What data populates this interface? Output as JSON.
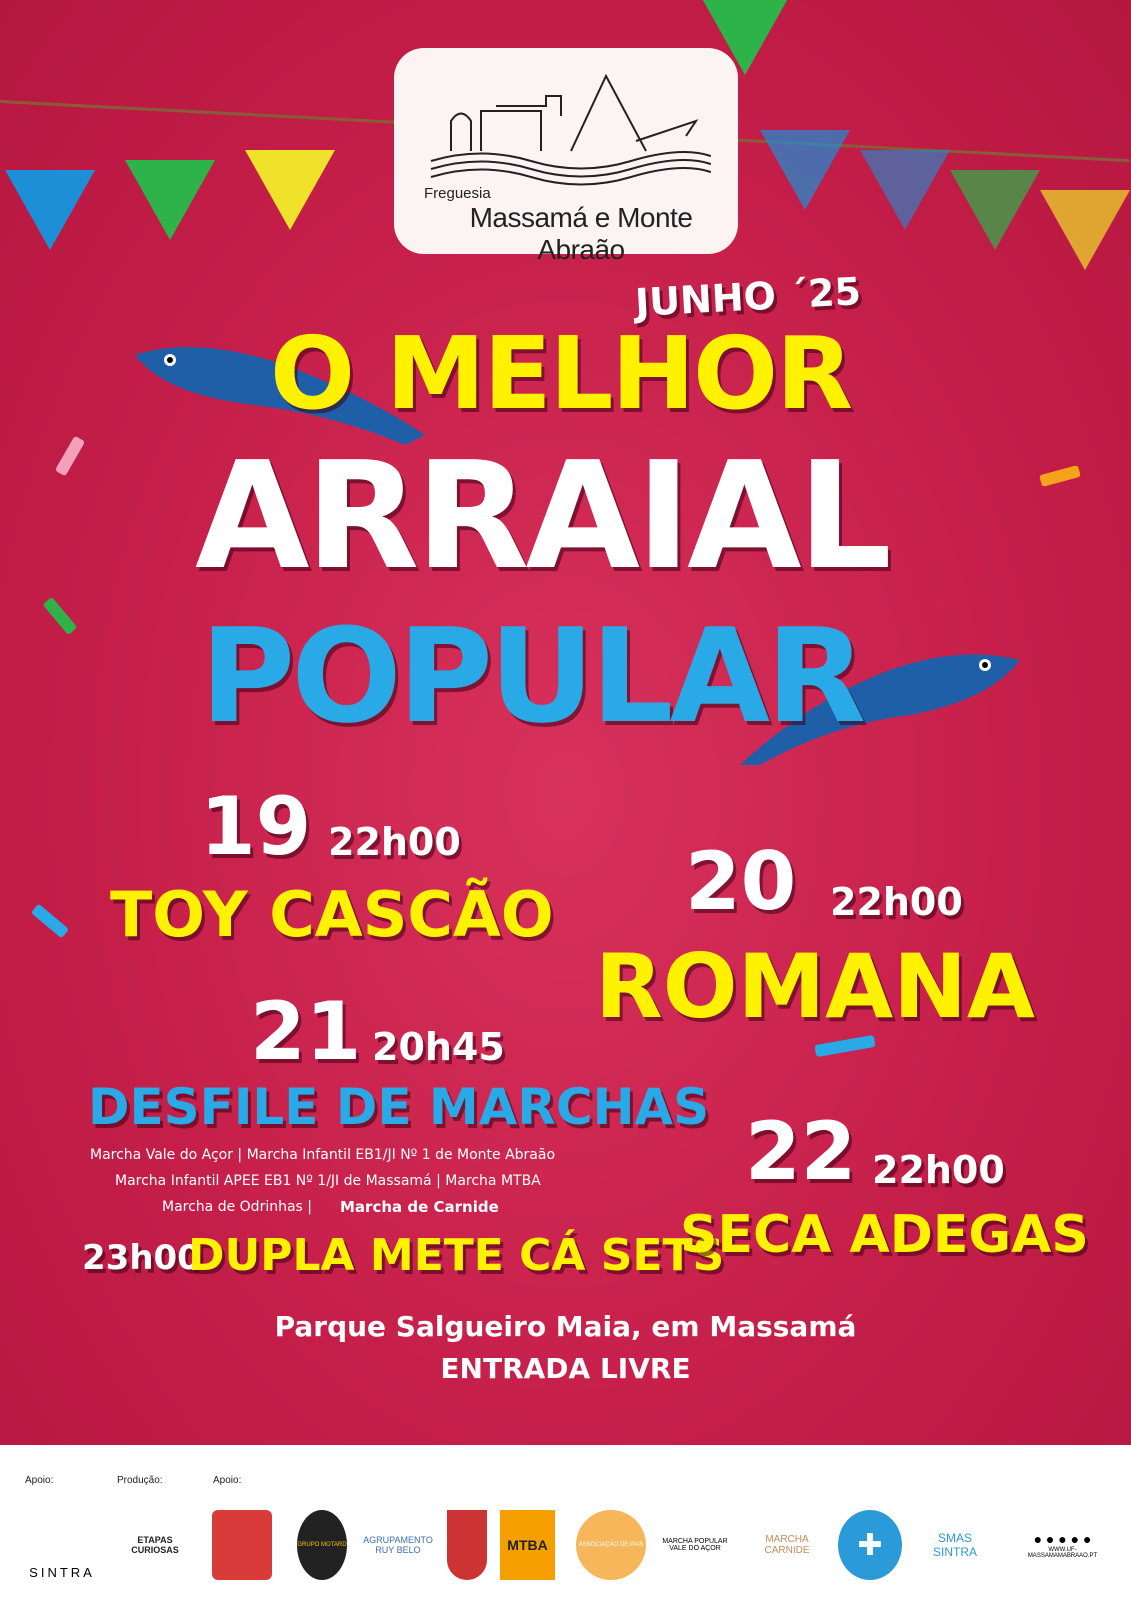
{
  "logo": {
    "small": "Freguesia",
    "name": "Massamá e Monte Abraão"
  },
  "header": {
    "edition": "JUNHO ´25",
    "title_line1": "O MELHOR",
    "title_line2": "ARRAIAL",
    "title_line3": "POPULAR"
  },
  "events": [
    {
      "day": "19",
      "time": "22h00",
      "name": "TOY CASCÃO"
    },
    {
      "day": "20",
      "time": "22h00",
      "name": "ROMANA"
    },
    {
      "day": "21",
      "time": "20h45",
      "name": "DESFILE DE MARCHAS",
      "details": [
        "Marcha Vale do Açor  | Marcha Infantil EB1/JI Nº 1 de Monte Abraão",
        "Marcha Infantil APEE EB1 Nº 1/JI de Massamá | Marcha MTBA",
        "Marcha de Odrinhas |"
      ],
      "highlight": "Marcha de Carnide",
      "extra_time": "23h00",
      "extra_name": "DUPLA METE CÁ SETS"
    },
    {
      "day": "22",
      "time": "22h00",
      "name": "SECA ADEGAS"
    }
  ],
  "venue": "Parque Salgueiro Maia, em Massamá",
  "entry": "ENTRADA LIVRE",
  "footer": {
    "label_apoio1": "Apoio:",
    "label_producao": "Produção:",
    "label_apoio2": "Apoio:",
    "sponsors": [
      "SINTRA",
      "ETAPAS CURIOSAS",
      "",
      "GRUPO MOTARD",
      "AGRUPAMENTO RUY BELO",
      "",
      "MTBA",
      "ASSOCIAÇÃO DE PAIS",
      "MARCHA POPULAR VALE DO AÇOR",
      "MARCHA CARNIDE",
      "",
      "SMAS SINTRA"
    ],
    "website": "WWW.UF-MASSAMAMABRAAO.PT"
  },
  "colors": {
    "background": "#c51f4a",
    "yellow": "#fff200",
    "blue": "#29a9e6"
  }
}
